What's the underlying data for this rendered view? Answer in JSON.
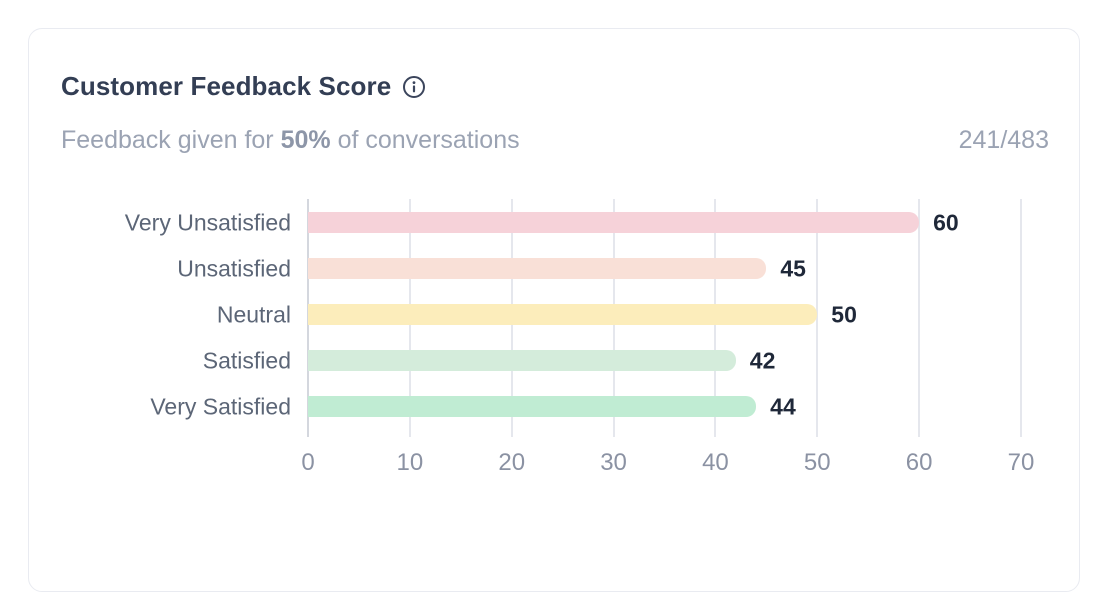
{
  "card": {
    "title": "Customer Feedback Score",
    "subtitle_prefix": "Feedback given for ",
    "subtitle_highlight": "50%",
    "subtitle_suffix": " of conversations",
    "count": "241/483"
  },
  "icons": {
    "info": "info-circle-icon"
  },
  "colors": {
    "card_border": "#e9ebf1",
    "title_text": "#333e54",
    "subtitle_text": "#9ba3b3",
    "category_text": "#5c6677",
    "tick_text": "#8b92a3",
    "value_text": "#1f2839",
    "gridline": "#e5e7ed",
    "axis_line": "#d4d7de",
    "info_icon": "#3b455c"
  },
  "chart_data": {
    "type": "bar",
    "orientation": "horizontal",
    "title": "Customer Feedback Score",
    "categories": [
      "Very Unsatisfied",
      "Unsatisfied",
      "Neutral",
      "Satisfied",
      "Very Satisfied"
    ],
    "values": [
      60,
      45,
      50,
      42,
      44
    ],
    "bar_colors": [
      "#f6d2d9",
      "#f9e0d7",
      "#fcedbb",
      "#d4ecdb",
      "#c0ecd3"
    ],
    "xlim": [
      0,
      70
    ],
    "xticks": [
      0,
      10,
      20,
      30,
      40,
      50,
      60,
      70
    ],
    "grid": true,
    "value_labels": true,
    "legend": false
  }
}
